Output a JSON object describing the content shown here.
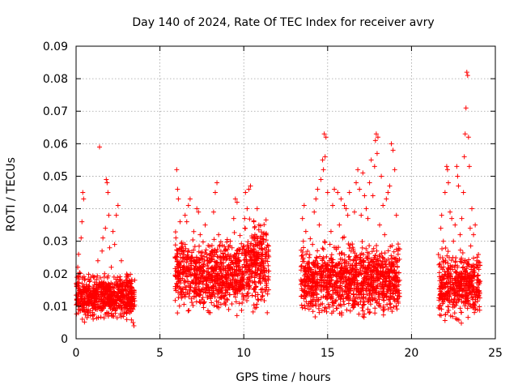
{
  "chart_data": {
    "type": "scatter",
    "title": "Day 140 of 2024, Rate Of TEC Index for receiver avry",
    "xlabel": "GPS time / hours",
    "ylabel": "ROTI / TECUs",
    "xlim": [
      0,
      25
    ],
    "ylim": [
      0,
      0.09
    ],
    "xticks": [
      0,
      5,
      10,
      15,
      20,
      25
    ],
    "xtick_labels": [
      "0",
      "5",
      "10",
      "15",
      "20",
      "25"
    ],
    "yticks": [
      0,
      0.01,
      0.02,
      0.03,
      0.04,
      0.05,
      0.06,
      0.07,
      0.08,
      0.09
    ],
    "ytick_labels": [
      "0",
      "0.01",
      "0.02",
      "0.03",
      "0.04",
      "0.05",
      "0.06",
      "0.07",
      "0.08",
      "0.09"
    ],
    "grid": true,
    "marker": "+",
    "color": "#ff0000",
    "series": [
      {
        "name": "ROTI",
        "points": [
          [
            0.05,
            0.012
          ],
          [
            0.1,
            0.022
          ],
          [
            0.15,
            0.026
          ],
          [
            0.2,
            0.009
          ],
          [
            0.25,
            0.015
          ],
          [
            0.3,
            0.031
          ],
          [
            0.35,
            0.036
          ],
          [
            0.4,
            0.045
          ],
          [
            0.45,
            0.043
          ],
          [
            0.5,
            0.018
          ],
          [
            0.6,
            0.011
          ],
          [
            0.7,
            0.008
          ],
          [
            0.8,
            0.016
          ],
          [
            0.9,
            0.013
          ],
          [
            1.0,
            0.007
          ],
          [
            1.1,
            0.019
          ],
          [
            1.2,
            0.013
          ],
          [
            1.3,
            0.024
          ],
          [
            1.4,
            0.059
          ],
          [
            1.5,
            0.012
          ],
          [
            1.55,
            0.027
          ],
          [
            1.6,
            0.031
          ],
          [
            1.7,
            0.02
          ],
          [
            1.75,
            0.034
          ],
          [
            1.8,
            0.049
          ],
          [
            1.85,
            0.048
          ],
          [
            1.9,
            0.045
          ],
          [
            1.95,
            0.038
          ],
          [
            2.0,
            0.028
          ],
          [
            2.1,
            0.022
          ],
          [
            2.2,
            0.033
          ],
          [
            2.3,
            0.029
          ],
          [
            2.4,
            0.038
          ],
          [
            2.5,
            0.041
          ],
          [
            2.6,
            0.018
          ],
          [
            2.7,
            0.024
          ],
          [
            2.8,
            0.015
          ],
          [
            2.9,
            0.012
          ],
          [
            3.0,
            0.019
          ],
          [
            3.1,
            0.014
          ],
          [
            3.2,
            0.008
          ],
          [
            3.3,
            0.012
          ],
          [
            3.4,
            0.005
          ],
          [
            3.45,
            0.004
          ],
          [
            3.5,
            0.018
          ],
          [
            5.95,
            0.031
          ],
          [
            6.0,
            0.052
          ],
          [
            6.05,
            0.046
          ],
          [
            6.1,
            0.043
          ],
          [
            6.2,
            0.036
          ],
          [
            6.3,
            0.028
          ],
          [
            6.4,
            0.022
          ],
          [
            6.5,
            0.038
          ],
          [
            6.6,
            0.036
          ],
          [
            6.7,
            0.041
          ],
          [
            6.8,
            0.043
          ],
          [
            6.9,
            0.025
          ],
          [
            7.0,
            0.018
          ],
          [
            7.1,
            0.02
          ],
          [
            7.2,
            0.04
          ],
          [
            7.3,
            0.039
          ],
          [
            7.4,
            0.032
          ],
          [
            7.5,
            0.012
          ],
          [
            7.6,
            0.021
          ],
          [
            7.7,
            0.035
          ],
          [
            7.8,
            0.026
          ],
          [
            7.9,
            0.016
          ],
          [
            8.0,
            0.008
          ],
          [
            8.1,
            0.027
          ],
          [
            8.2,
            0.039
          ],
          [
            8.3,
            0.045
          ],
          [
            8.4,
            0.048
          ],
          [
            8.5,
            0.032
          ],
          [
            8.6,
            0.017
          ],
          [
            8.7,
            0.014
          ],
          [
            8.8,
            0.025
          ],
          [
            8.9,
            0.021
          ],
          [
            9.0,
            0.018
          ],
          [
            9.1,
            0.009
          ],
          [
            9.2,
            0.03
          ],
          [
            9.3,
            0.028
          ],
          [
            9.4,
            0.037
          ],
          [
            9.5,
            0.043
          ],
          [
            9.6,
            0.042
          ],
          [
            9.7,
            0.022
          ],
          [
            9.8,
            0.02
          ],
          [
            9.9,
            0.011
          ],
          [
            10.05,
            0.037
          ],
          [
            10.1,
            0.045
          ],
          [
            10.2,
            0.04
          ],
          [
            10.3,
            0.046
          ],
          [
            10.4,
            0.047
          ],
          [
            10.5,
            0.031
          ],
          [
            10.6,
            0.036
          ],
          [
            10.7,
            0.029
          ],
          [
            10.8,
            0.04
          ],
          [
            10.9,
            0.035
          ],
          [
            11.0,
            0.03
          ],
          [
            11.1,
            0.013
          ],
          [
            11.2,
            0.024
          ],
          [
            11.3,
            0.018
          ],
          [
            11.4,
            0.008
          ],
          [
            13.5,
            0.037
          ],
          [
            13.55,
            0.03
          ],
          [
            13.6,
            0.041
          ],
          [
            13.7,
            0.033
          ],
          [
            13.8,
            0.018
          ],
          [
            13.9,
            0.025
          ],
          [
            14.0,
            0.013
          ],
          [
            14.1,
            0.029
          ],
          [
            14.2,
            0.039
          ],
          [
            14.3,
            0.043
          ],
          [
            14.4,
            0.046
          ],
          [
            14.5,
            0.035
          ],
          [
            14.6,
            0.049
          ],
          [
            14.7,
            0.055
          ],
          [
            14.75,
            0.052
          ],
          [
            14.8,
            0.063
          ],
          [
            14.85,
            0.056
          ],
          [
            14.9,
            0.062
          ],
          [
            15.0,
            0.045
          ],
          [
            15.1,
            0.024
          ],
          [
            15.2,
            0.033
          ],
          [
            15.3,
            0.041
          ],
          [
            15.4,
            0.046
          ],
          [
            15.5,
            0.028
          ],
          [
            15.6,
            0.045
          ],
          [
            15.7,
            0.035
          ],
          [
            15.8,
            0.043
          ],
          [
            15.9,
            0.031
          ],
          [
            16.0,
            0.041
          ],
          [
            16.1,
            0.04
          ],
          [
            16.2,
            0.038
          ],
          [
            16.3,
            0.045
          ],
          [
            16.4,
            0.027
          ],
          [
            16.5,
            0.021
          ],
          [
            16.6,
            0.039
          ],
          [
            16.7,
            0.048
          ],
          [
            16.8,
            0.052
          ],
          [
            16.9,
            0.046
          ],
          [
            17.0,
            0.038
          ],
          [
            17.1,
            0.051
          ],
          [
            17.2,
            0.044
          ],
          [
            17.3,
            0.04
          ],
          [
            17.4,
            0.037
          ],
          [
            17.5,
            0.048
          ],
          [
            17.6,
            0.055
          ],
          [
            17.7,
            0.044
          ],
          [
            17.8,
            0.053
          ],
          [
            17.85,
            0.061
          ],
          [
            17.9,
            0.063
          ],
          [
            17.95,
            0.057
          ],
          [
            18.0,
            0.062
          ],
          [
            18.1,
            0.035
          ],
          [
            18.2,
            0.05
          ],
          [
            18.3,
            0.041
          ],
          [
            18.4,
            0.032
          ],
          [
            18.5,
            0.043
          ],
          [
            18.6,
            0.045
          ],
          [
            18.7,
            0.047
          ],
          [
            18.8,
            0.06
          ],
          [
            18.9,
            0.058
          ],
          [
            19.0,
            0.052
          ],
          [
            19.1,
            0.038
          ],
          [
            19.2,
            0.026
          ],
          [
            19.25,
            0.013
          ],
          [
            21.75,
            0.034
          ],
          [
            21.8,
            0.038
          ],
          [
            21.9,
            0.03
          ],
          [
            22.0,
            0.045
          ],
          [
            22.1,
            0.053
          ],
          [
            22.15,
            0.052
          ],
          [
            22.2,
            0.048
          ],
          [
            22.3,
            0.039
          ],
          [
            22.4,
            0.037
          ],
          [
            22.5,
            0.03
          ],
          [
            22.6,
            0.035
          ],
          [
            22.7,
            0.053
          ],
          [
            22.75,
            0.05
          ],
          [
            22.8,
            0.047
          ],
          [
            22.9,
            0.032
          ],
          [
            23.0,
            0.037
          ],
          [
            23.1,
            0.045
          ],
          [
            23.15,
            0.056
          ],
          [
            23.2,
            0.063
          ],
          [
            23.25,
            0.071
          ],
          [
            23.3,
            0.082
          ],
          [
            23.35,
            0.081
          ],
          [
            23.4,
            0.062
          ],
          [
            23.45,
            0.053
          ],
          [
            23.5,
            0.034
          ],
          [
            23.6,
            0.04
          ],
          [
            23.7,
            0.032
          ],
          [
            23.8,
            0.035
          ],
          [
            23.9,
            0.024
          ],
          [
            24.0,
            0.018
          ]
        ],
        "dense_bands": [
          {
            "x_range": [
              0.0,
              3.5
            ],
            "y_range": [
              0.004,
              0.022
            ]
          },
          {
            "x_range": [
              5.9,
              10.0
            ],
            "y_range": [
              0.005,
              0.035
            ]
          },
          {
            "x_range": [
              10.0,
              11.5
            ],
            "y_range": [
              0.006,
              0.04
            ]
          },
          {
            "x_range": [
              13.4,
              19.3
            ],
            "y_range": [
              0.004,
              0.032
            ]
          },
          {
            "x_range": [
              21.6,
              24.1
            ],
            "y_range": [
              0.003,
              0.03
            ]
          }
        ]
      }
    ]
  }
}
